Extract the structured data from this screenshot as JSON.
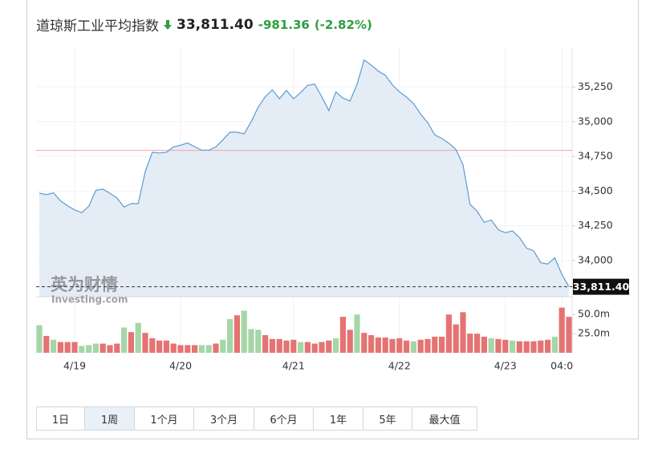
{
  "header": {
    "title": "道琼斯工业平均指数",
    "price": "33,811.40",
    "change": "-981.36",
    "change_percent": "(-2.82%)"
  },
  "chart_data": [
    {
      "type": "area",
      "values": [
        34485,
        34475,
        34488,
        34430,
        34395,
        34365,
        34345,
        34390,
        34505,
        34515,
        34485,
        34450,
        34385,
        34410,
        34410,
        34640,
        34780,
        34775,
        34780,
        34818,
        34830,
        34847,
        34820,
        34795,
        34795,
        34818,
        34870,
        34924,
        34924,
        34912,
        35000,
        35105,
        35180,
        35230,
        35165,
        35225,
        35165,
        35210,
        35262,
        35270,
        35180,
        35080,
        35215,
        35170,
        35149,
        35270,
        35445,
        35407,
        35365,
        35335,
        35265,
        35215,
        35178,
        35130,
        35055,
        34993,
        34905,
        34880,
        34845,
        34800,
        34690,
        34405,
        34355,
        34275,
        34292,
        34222,
        34200,
        34214,
        34165,
        34090,
        34070,
        33985,
        33975,
        34020,
        33900,
        33811.4
      ],
      "last_value_label": "33,811.40",
      "color": "#5b9bd5",
      "fill_color": "#e4ecf5",
      "reference_line": 34792.76,
      "reference_color": "#f4a3a8",
      "ylim": [
        33740,
        35530
      ],
      "yticks": [
        {
          "value": 34000,
          "label": "34,000"
        },
        {
          "value": 34250,
          "label": "34,250"
        },
        {
          "value": 34500,
          "label": "34,500"
        },
        {
          "value": 34750,
          "label": "34,750"
        },
        {
          "value": 35000,
          "label": "35,000"
        },
        {
          "value": 35250,
          "label": "35,250"
        }
      ],
      "grid": true,
      "watermark": [
        "英为财情",
        "Investing.com"
      ]
    },
    {
      "type": "bar",
      "categories": [
        null,
        null,
        null,
        null,
        null,
        "4/19",
        null,
        null,
        null,
        null,
        null,
        null,
        null,
        null,
        null,
        null,
        null,
        null,
        null,
        null,
        "4/20",
        null,
        null,
        null,
        null,
        null,
        null,
        null,
        null,
        null,
        null,
        null,
        null,
        null,
        null,
        null,
        "4/21",
        null,
        null,
        null,
        null,
        null,
        null,
        null,
        null,
        null,
        null,
        null,
        null,
        null,
        null,
        "4/22",
        null,
        null,
        null,
        null,
        null,
        null,
        null,
        null,
        null,
        null,
        null,
        null,
        null,
        null,
        "4/23",
        null,
        null,
        null,
        null,
        null,
        null,
        null,
        "04:0",
        null
      ],
      "values": [
        36,
        22,
        17,
        14,
        14,
        14,
        9,
        10,
        12,
        12,
        10,
        12,
        33,
        27,
        39,
        26,
        19,
        16,
        16,
        12,
        10,
        10,
        10,
        10,
        10,
        12,
        17,
        44,
        49,
        55,
        31,
        30,
        23,
        18,
        18,
        16,
        17,
        14,
        14,
        12,
        14,
        16,
        19,
        47,
        30,
        50,
        26,
        23,
        20,
        20,
        18,
        19,
        16,
        15,
        17,
        18,
        21,
        21,
        50,
        37,
        53,
        25,
        25,
        21,
        19,
        18,
        17,
        16,
        15,
        15,
        15,
        16,
        17,
        21,
        59,
        47
      ],
      "direction": [
        "up",
        "down",
        "up",
        "down",
        "down",
        "down",
        "up",
        "up",
        "up",
        "down",
        "down",
        "down",
        "up",
        "down",
        "up",
        "down",
        "down",
        "down",
        "down",
        "down",
        "down",
        "down",
        "down",
        "up",
        "up",
        "down",
        "up",
        "up",
        "down",
        "up",
        "up",
        "up",
        "down",
        "down",
        "down",
        "down",
        "down",
        "up",
        "down",
        "down",
        "down",
        "down",
        "up",
        "down",
        "down",
        "up",
        "down",
        "down",
        "down",
        "down",
        "down",
        "down",
        "down",
        "up",
        "down",
        "down",
        "down",
        "down",
        "down",
        "down",
        "down",
        "down",
        "down",
        "down",
        "up",
        "down",
        "down",
        "up",
        "down",
        "down",
        "down",
        "down",
        "down",
        "up",
        "down",
        "down"
      ],
      "up_color": "#a5d6a7",
      "down_color": "#e57373",
      "ylim": [
        0,
        67
      ],
      "yticks": [
        {
          "value": 25,
          "label": "25.0m"
        },
        {
          "value": 50,
          "label": "50.0m"
        }
      ]
    }
  ],
  "range_buttons": [
    "1日",
    "1周",
    "1个月",
    "3个月",
    "6个月",
    "1年",
    "5年",
    "最大值"
  ],
  "selected_range_index": 1
}
